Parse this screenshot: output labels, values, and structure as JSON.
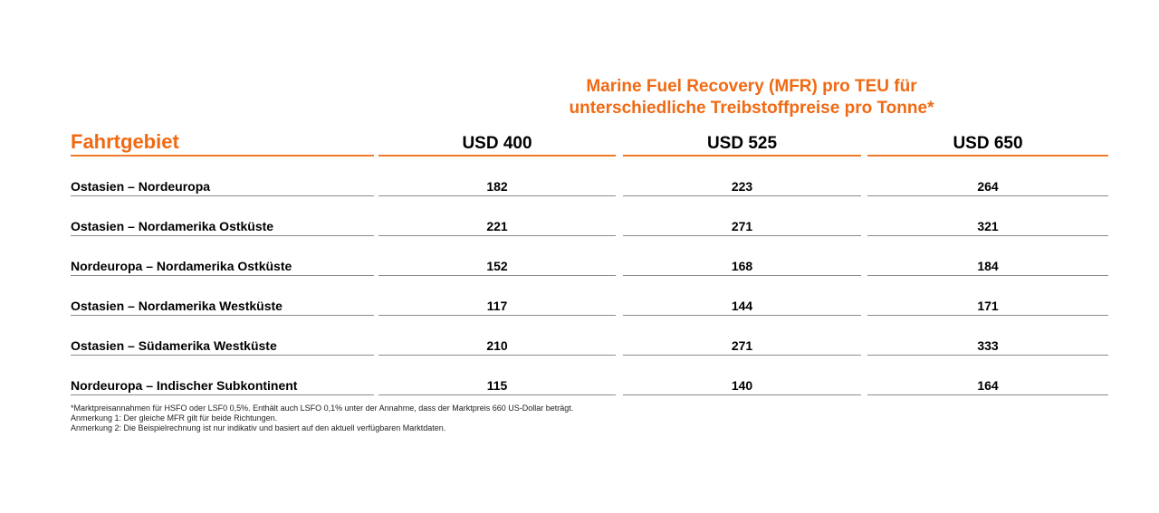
{
  "title": {
    "line1": "Marine Fuel Recovery (MFR) pro TEU für",
    "line2": "unterschiedliche Treibstoffpreise pro Tonne*"
  },
  "columns": {
    "region": "Fahrtgebiet",
    "price1": "USD 400",
    "price2": "USD 525",
    "price3": "USD 650"
  },
  "rows": [
    {
      "region": "Ostasien – Nordeuropa",
      "v1": "182",
      "v2": "223",
      "v3": "264"
    },
    {
      "region": "Ostasien – Nordamerika Ostküste",
      "v1": "221",
      "v2": "271",
      "v3": "321"
    },
    {
      "region": "Nordeuropa – Nordamerika Ostküste",
      "v1": "152",
      "v2": "168",
      "v3": "184"
    },
    {
      "region": "Ostasien – Nordamerika Westküste",
      "v1": "117",
      "v2": "144",
      "v3": "171"
    },
    {
      "region": "Ostasien – Südamerika Westküste",
      "v1": "210",
      "v2": "271",
      "v3": "333"
    },
    {
      "region": "Nordeuropa – Indischer Subkontinent",
      "v1": "115",
      "v2": "140",
      "v3": "164"
    }
  ],
  "notes": [
    "*Marktpreisannahmen für HSFO oder LSF0 0,5%. Enthält auch LSFO 0,1% unter der Annahme, dass der Marktpreis 660 US-Dollar beträgt.",
    "Anmerkung 1: Der gleiche MFR gilt für beide Richtungen.",
    "Anmerkung 2: Die Beispielrechnung ist nur indikativ und basiert auf den aktuell verfügbaren Marktdaten."
  ],
  "colors": {
    "accent": "#f06a14",
    "rule": "#8c8c8c"
  }
}
